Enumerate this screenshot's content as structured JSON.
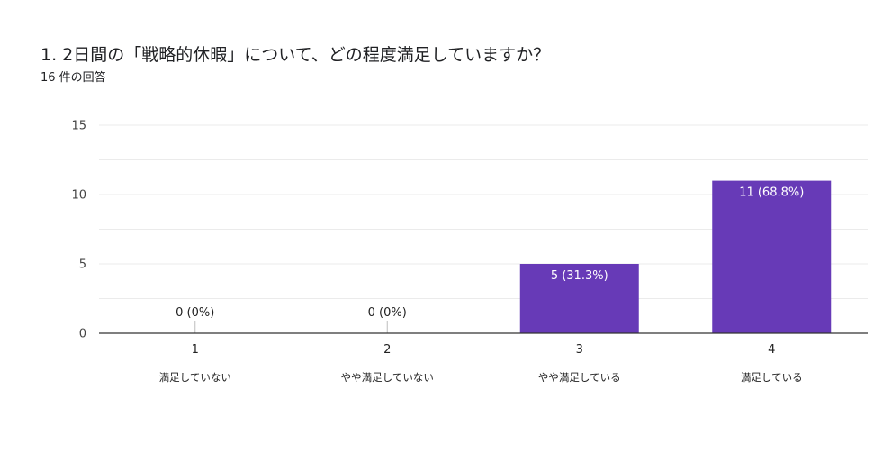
{
  "title": "1. 2日間の「戦略的休暇」について、どの程度満足していますか？",
  "subtitle": "16 件の回答",
  "colors": {
    "bar": "#673ab7",
    "grid": "#ebebeb",
    "axis": "#333333"
  },
  "chart_data": {
    "type": "bar",
    "categories": [
      "1",
      "2",
      "3",
      "4"
    ],
    "category_descriptions": [
      "満足していない",
      "やや満足していない",
      "やや満足している",
      "満足している"
    ],
    "values": [
      0,
      0,
      5,
      11
    ],
    "data_labels": [
      "0 (0%)",
      "0 (0%)",
      "5 (31.3%)",
      "11 (68.8%)"
    ],
    "ylim": [
      0,
      15
    ],
    "yticks": [
      0,
      5,
      10,
      15
    ],
    "grid": true,
    "legend": "none"
  }
}
